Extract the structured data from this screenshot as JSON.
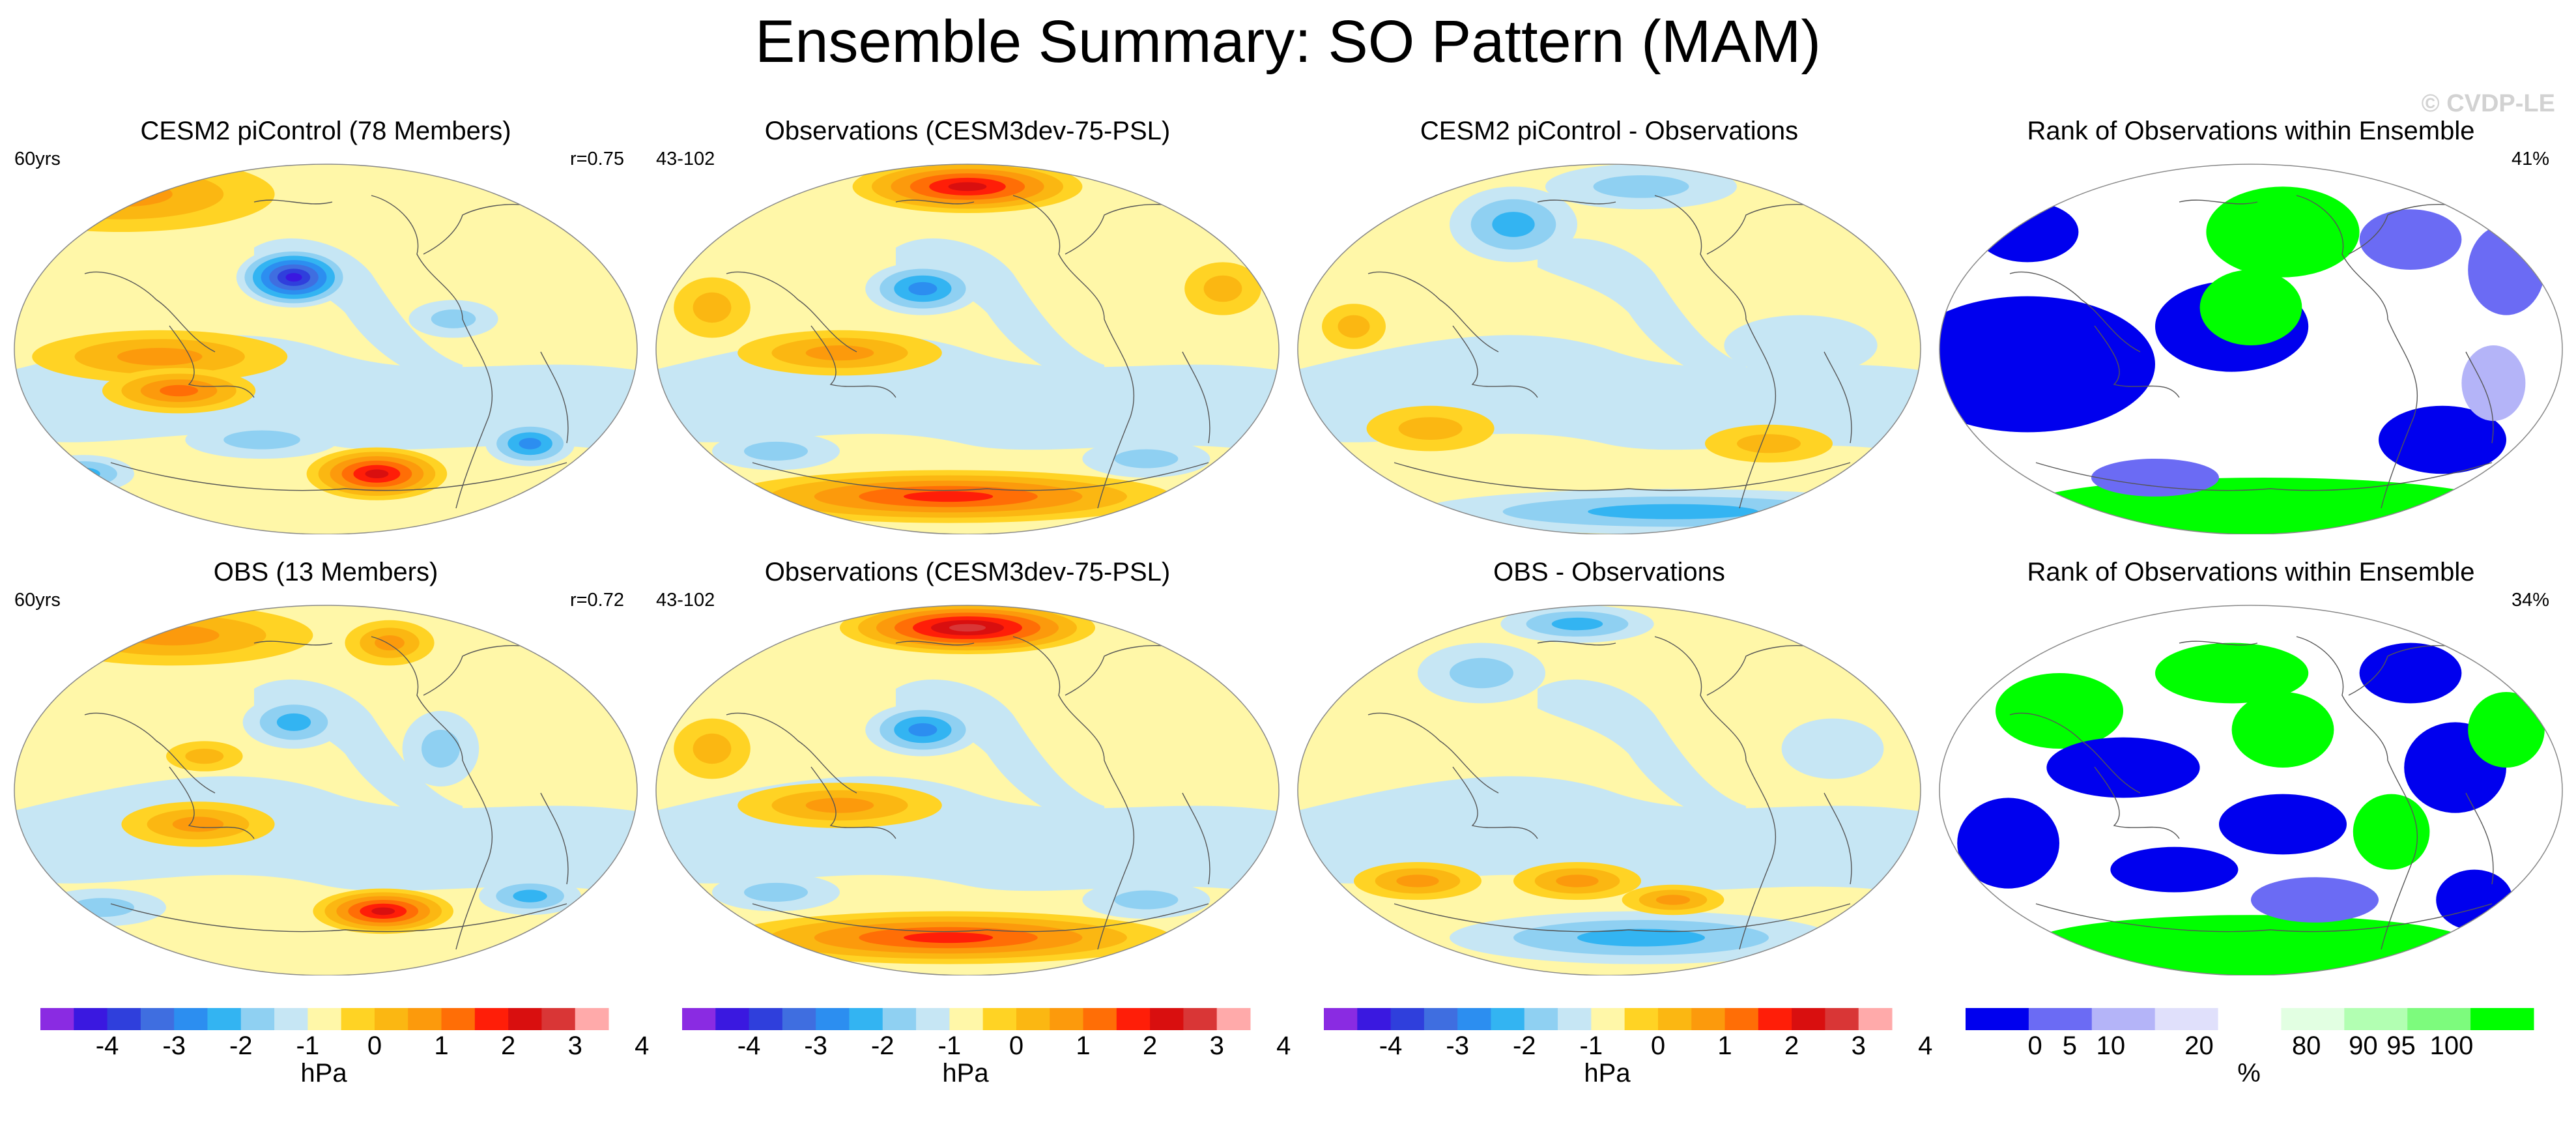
{
  "title": "Ensemble Summary: SO Pattern (MAM)",
  "watermark": "© CVDP-LE",
  "panels": [
    {
      "title": "CESM2 piControl (78 Members)",
      "left": "60yrs",
      "right": "r=0.75",
      "type": "field",
      "blobs": [
        [
          0.18,
          0.1,
          0.24,
          0.1,
          3
        ],
        [
          0.45,
          0.32,
          0.09,
          0.08,
          -7
        ],
        [
          0.24,
          0.53,
          0.2,
          0.07,
          3
        ],
        [
          0.27,
          0.62,
          0.12,
          0.06,
          4
        ],
        [
          0.58,
          0.84,
          0.11,
          0.07,
          6
        ],
        [
          0.82,
          0.76,
          0.07,
          0.06,
          -4
        ],
        [
          0.12,
          0.84,
          0.08,
          0.05,
          -3
        ],
        [
          0.7,
          0.43,
          0.07,
          0.05,
          -2
        ],
        [
          0.4,
          0.75,
          0.12,
          0.05,
          -2
        ]
      ]
    },
    {
      "title": "Observations (CESM3dev-75-PSL)",
      "left": "43-102",
      "right": "",
      "type": "field",
      "blobs": [
        [
          0.5,
          0.08,
          0.18,
          0.07,
          6
        ],
        [
          0.43,
          0.35,
          0.09,
          0.07,
          -4
        ],
        [
          0.3,
          0.52,
          0.16,
          0.06,
          3
        ],
        [
          0.47,
          0.9,
          0.35,
          0.07,
          5
        ],
        [
          0.78,
          0.8,
          0.1,
          0.05,
          -2
        ],
        [
          0.2,
          0.78,
          0.1,
          0.05,
          -2
        ],
        [
          0.9,
          0.35,
          0.06,
          0.07,
          2
        ],
        [
          0.1,
          0.4,
          0.06,
          0.08,
          2
        ]
      ]
    },
    {
      "title": "CESM2 piControl - Observations",
      "left": "",
      "right": "",
      "type": "field",
      "blobs": [
        [
          0.35,
          0.18,
          0.1,
          0.1,
          -3
        ],
        [
          0.55,
          0.08,
          0.15,
          0.06,
          -2
        ],
        [
          0.8,
          0.5,
          0.12,
          0.08,
          -1
        ],
        [
          0.6,
          0.94,
          0.4,
          0.06,
          -3
        ],
        [
          0.75,
          0.76,
          0.1,
          0.05,
          2
        ],
        [
          0.22,
          0.72,
          0.1,
          0.06,
          2
        ],
        [
          0.1,
          0.45,
          0.05,
          0.06,
          2
        ]
      ]
    },
    {
      "title": "Rank of Observations within Ensemble",
      "left": "",
      "right": "41%",
      "type": "rank",
      "blobs": [
        [
          0.15,
          0.55,
          0.2,
          0.18,
          -5
        ],
        [
          0.47,
          0.45,
          0.12,
          0.12,
          -5
        ],
        [
          0.55,
          0.2,
          0.12,
          0.12,
          5
        ],
        [
          0.5,
          0.4,
          0.08,
          0.1,
          5
        ],
        [
          0.52,
          0.93,
          0.38,
          0.08,
          5
        ],
        [
          0.8,
          0.75,
          0.1,
          0.09,
          -5
        ],
        [
          0.75,
          0.22,
          0.08,
          0.08,
          -4
        ],
        [
          0.9,
          0.3,
          0.06,
          0.12,
          -4
        ],
        [
          0.88,
          0.6,
          0.05,
          0.1,
          -3
        ],
        [
          0.15,
          0.2,
          0.08,
          0.08,
          -5
        ],
        [
          0.35,
          0.85,
          0.1,
          0.05,
          -4
        ]
      ]
    },
    {
      "title": "OBS (13 Members)",
      "left": "60yrs",
      "right": "r=0.72",
      "type": "field",
      "blobs": [
        [
          0.26,
          0.1,
          0.22,
          0.08,
          3
        ],
        [
          0.6,
          0.12,
          0.07,
          0.06,
          3
        ],
        [
          0.45,
          0.33,
          0.08,
          0.07,
          -3
        ],
        [
          0.3,
          0.6,
          0.12,
          0.06,
          3
        ],
        [
          0.59,
          0.83,
          0.11,
          0.06,
          6
        ],
        [
          0.82,
          0.79,
          0.08,
          0.05,
          -3
        ],
        [
          0.15,
          0.82,
          0.1,
          0.05,
          -2
        ],
        [
          0.68,
          0.4,
          0.06,
          0.1,
          -2
        ],
        [
          0.31,
          0.42,
          0.06,
          0.04,
          2
        ]
      ]
    },
    {
      "title": "Observations (CESM3dev-75-PSL)",
      "left": "43-102",
      "right": "",
      "type": "field",
      "blobs": [
        [
          0.5,
          0.08,
          0.2,
          0.07,
          7
        ],
        [
          0.43,
          0.35,
          0.09,
          0.07,
          -4
        ],
        [
          0.3,
          0.55,
          0.16,
          0.06,
          3
        ],
        [
          0.47,
          0.9,
          0.35,
          0.07,
          5
        ],
        [
          0.78,
          0.8,
          0.1,
          0.05,
          -2
        ],
        [
          0.2,
          0.78,
          0.1,
          0.05,
          -2
        ],
        [
          0.1,
          0.4,
          0.06,
          0.08,
          2
        ]
      ]
    },
    {
      "title": "OBS - Observations",
      "left": "",
      "right": "",
      "type": "field",
      "blobs": [
        [
          0.45,
          0.07,
          0.12,
          0.05,
          -3
        ],
        [
          0.3,
          0.2,
          0.1,
          0.08,
          -2
        ],
        [
          0.55,
          0.9,
          0.3,
          0.07,
          -3
        ],
        [
          0.6,
          0.8,
          0.08,
          0.04,
          3
        ],
        [
          0.2,
          0.75,
          0.1,
          0.05,
          3
        ],
        [
          0.45,
          0.75,
          0.1,
          0.05,
          3
        ],
        [
          0.85,
          0.4,
          0.08,
          0.08,
          -1
        ]
      ]
    },
    {
      "title": "Rank of Observations within Ensemble",
      "left": "",
      "right": "34%",
      "type": "rank",
      "blobs": [
        [
          0.2,
          0.3,
          0.1,
          0.1,
          5
        ],
        [
          0.47,
          0.2,
          0.12,
          0.08,
          5
        ],
        [
          0.55,
          0.35,
          0.08,
          0.1,
          5
        ],
        [
          0.3,
          0.45,
          0.12,
          0.08,
          -5
        ],
        [
          0.12,
          0.65,
          0.08,
          0.12,
          -5
        ],
        [
          0.38,
          0.72,
          0.1,
          0.06,
          -5
        ],
        [
          0.55,
          0.6,
          0.1,
          0.08,
          -5
        ],
        [
          0.72,
          0.62,
          0.06,
          0.1,
          5
        ],
        [
          0.82,
          0.45,
          0.08,
          0.12,
          -5
        ],
        [
          0.75,
          0.2,
          0.08,
          0.08,
          -5
        ],
        [
          0.5,
          0.92,
          0.35,
          0.08,
          5
        ],
        [
          0.9,
          0.35,
          0.06,
          0.1,
          5
        ],
        [
          0.6,
          0.8,
          0.1,
          0.06,
          -4
        ],
        [
          0.85,
          0.8,
          0.06,
          0.08,
          -5
        ]
      ]
    }
  ],
  "colorbars": [
    {
      "labels": [
        "-4",
        "-3",
        "-2",
        "-1",
        "0",
        "1",
        "2",
        "3",
        "4"
      ],
      "unit": "hPa"
    },
    {
      "labels": [
        "-4",
        "-3",
        "-2",
        "-1",
        "0",
        "1",
        "2",
        "3",
        "4"
      ],
      "unit": "hPa"
    },
    {
      "labels": [
        "-4",
        "-3",
        "-2",
        "-1",
        "0",
        "1",
        "2",
        "3",
        "4"
      ],
      "unit": "hPa"
    },
    {
      "labels": [
        "0",
        "5",
        "10",
        "20",
        "80",
        "90",
        "95",
        "100"
      ],
      "unit": "%"
    }
  ],
  "colors": {
    "diverging": [
      "#8a2be2",
      "#3a18e0",
      "#2f3fdc",
      "#3f6ee0",
      "#2c8ef0",
      "#33b4f2",
      "#8fd0f2",
      "#c6e6f4",
      "#fff7a8",
      "#ffd324",
      "#fbb712",
      "#fc9a0c",
      "#ff6e06",
      "#ff1e08",
      "#d90f0f",
      "#d93636",
      "#ffaaaa"
    ],
    "rank": [
      "#0000ee",
      "#6b6bf4",
      "#b4b4f8",
      "#e0e0fb",
      "#ffffff",
      "#e2ffe2",
      "#b2ffb2",
      "#7dfb7d",
      "#00ff00"
    ]
  }
}
